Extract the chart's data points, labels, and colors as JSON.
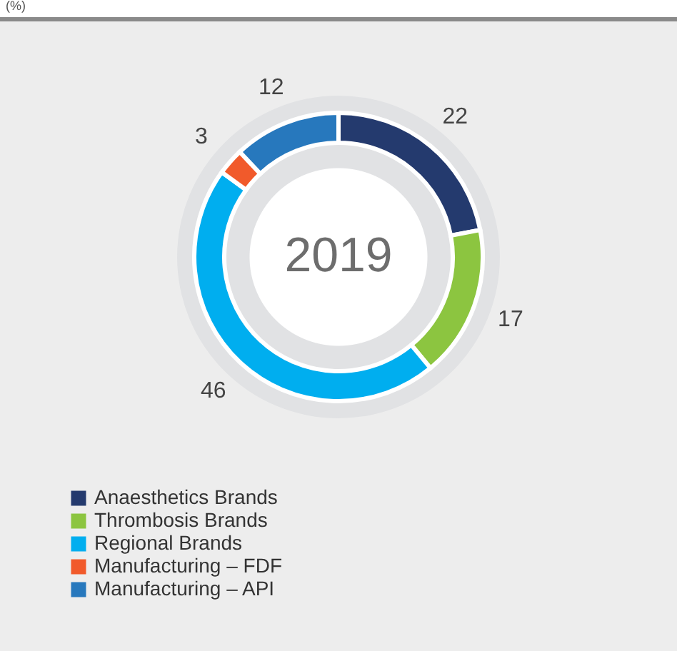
{
  "chart_data": {
    "type": "donut",
    "title": "2019",
    "annotations": [
      "(%)"
    ],
    "categories": [
      "Anaesthetics Brands",
      "Thrombosis Brands",
      "Regional Brands",
      "Manufacturing – FDF",
      "Manufacturing – API"
    ],
    "values": [
      22,
      17,
      46,
      3,
      12
    ],
    "colors": [
      "#243a6e",
      "#8cc540",
      "#00aeef",
      "#f15a2b",
      "#2778bd"
    ],
    "data_labels": true,
    "legend": "bottom left"
  }
}
